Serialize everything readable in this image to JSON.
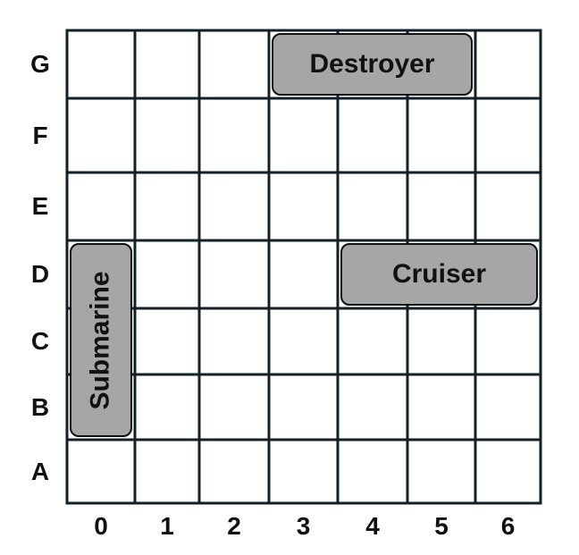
{
  "board": {
    "rows": [
      "G",
      "F",
      "E",
      "D",
      "C",
      "B",
      "A"
    ],
    "columns": [
      "0",
      "1",
      "2",
      "3",
      "4",
      "5",
      "6"
    ],
    "line_color": "#12202a",
    "ship_fill": "#a6a6a6"
  },
  "ships": [
    {
      "name": "Destroyer",
      "row": "G",
      "start_col": 3,
      "end_col": 5,
      "orientation": "horizontal"
    },
    {
      "name": "Cruiser",
      "row": "D",
      "start_col": 4,
      "end_col": 6,
      "orientation": "horizontal"
    },
    {
      "name": "Submarine",
      "col": 0,
      "start_row": "D",
      "end_row": "B",
      "orientation": "vertical"
    }
  ]
}
